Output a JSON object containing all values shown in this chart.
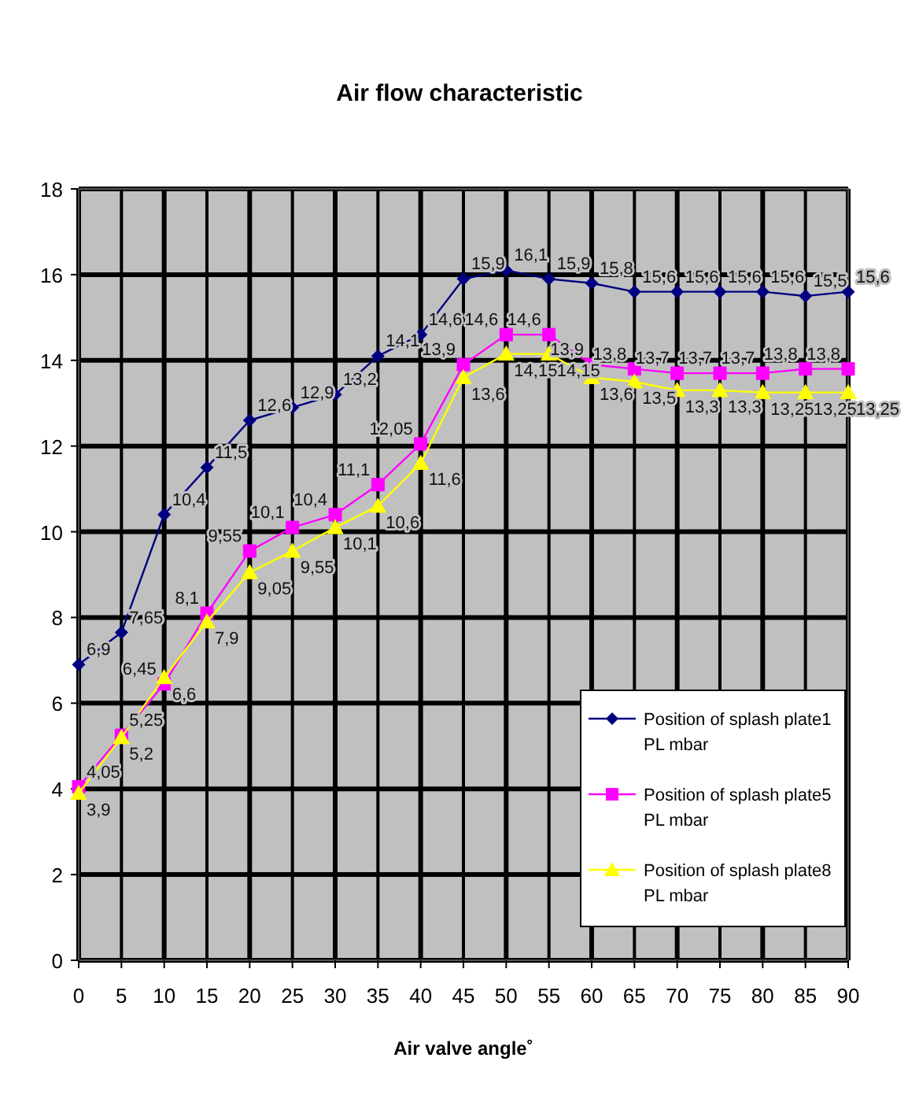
{
  "chart_data": {
    "type": "line",
    "title": "Air flow characteristic",
    "xlabel": "Air valve angle˚",
    "x": [
      0,
      5,
      10,
      15,
      20,
      25,
      30,
      35,
      40,
      45,
      50,
      55,
      60,
      65,
      70,
      75,
      80,
      85,
      90
    ],
    "xlim": [
      0,
      90
    ],
    "xticks": [
      0,
      5,
      10,
      15,
      20,
      25,
      30,
      35,
      40,
      45,
      50,
      55,
      60,
      65,
      70,
      75,
      80,
      85,
      90
    ],
    "ylim": [
      0,
      18
    ],
    "yticks": [
      0,
      2,
      4,
      6,
      8,
      10,
      12,
      14,
      16,
      18
    ],
    "grid": true,
    "legend": "right",
    "series": [
      {
        "name": "Position of splash plate1 PL mbar",
        "color": "#000080",
        "marker": "diamond",
        "values": [
          6.9,
          7.65,
          10.4,
          11.5,
          12.6,
          12.9,
          13.2,
          14.1,
          14.6,
          15.9,
          16.1,
          15.9,
          15.8,
          15.6,
          15.6,
          15.6,
          15.6,
          15.5,
          15.6
        ],
        "value_labels": [
          "6,9",
          "7,65",
          "10,4",
          "11,5",
          "12,6",
          "12,9",
          "13,2",
          "14,1",
          "14,6",
          "15,9",
          "16,1",
          "15,9",
          "15,8",
          "15,6",
          "15,6",
          "15,6",
          "15,6",
          "15,5",
          "15,6"
        ]
      },
      {
        "name": "Position of splash plate5 PL mbar",
        "color": "#ff00ff",
        "marker": "square",
        "values": [
          4.05,
          5.25,
          6.45,
          8.1,
          9.55,
          10.1,
          10.4,
          11.1,
          12.05,
          13.9,
          14.6,
          14.6,
          13.9,
          13.8,
          13.7,
          13.7,
          13.7,
          13.8,
          13.8
        ],
        "value_labels": [
          "4,05",
          "5,25",
          "6,45",
          "8,1",
          "9,55",
          "10,1",
          "10,4",
          "11,1",
          "12,05",
          "13,9",
          "14,6",
          "14,6",
          "13,9",
          "13,8",
          "13,7",
          "13,7",
          "13,7",
          "13,8",
          "13,8"
        ]
      },
      {
        "name": "Position of splash plate8 PL mbar",
        "color": "#ffff00",
        "marker": "triangle",
        "values": [
          3.9,
          5.2,
          6.6,
          7.9,
          9.05,
          9.55,
          10.1,
          10.6,
          11.6,
          13.6,
          14.15,
          14.15,
          13.6,
          13.5,
          13.3,
          13.3,
          13.25,
          13.25,
          13.25
        ],
        "value_labels": [
          "3,9",
          "5,2",
          "6,6",
          "7,9",
          "9,05",
          "9,55",
          "10,1",
          "10,6",
          "11,6",
          "13,6",
          "14,15",
          "14,15",
          "13,6",
          "13,5",
          "13,3",
          "13,3",
          "13,25",
          "13,25",
          "13,25"
        ]
      }
    ]
  }
}
